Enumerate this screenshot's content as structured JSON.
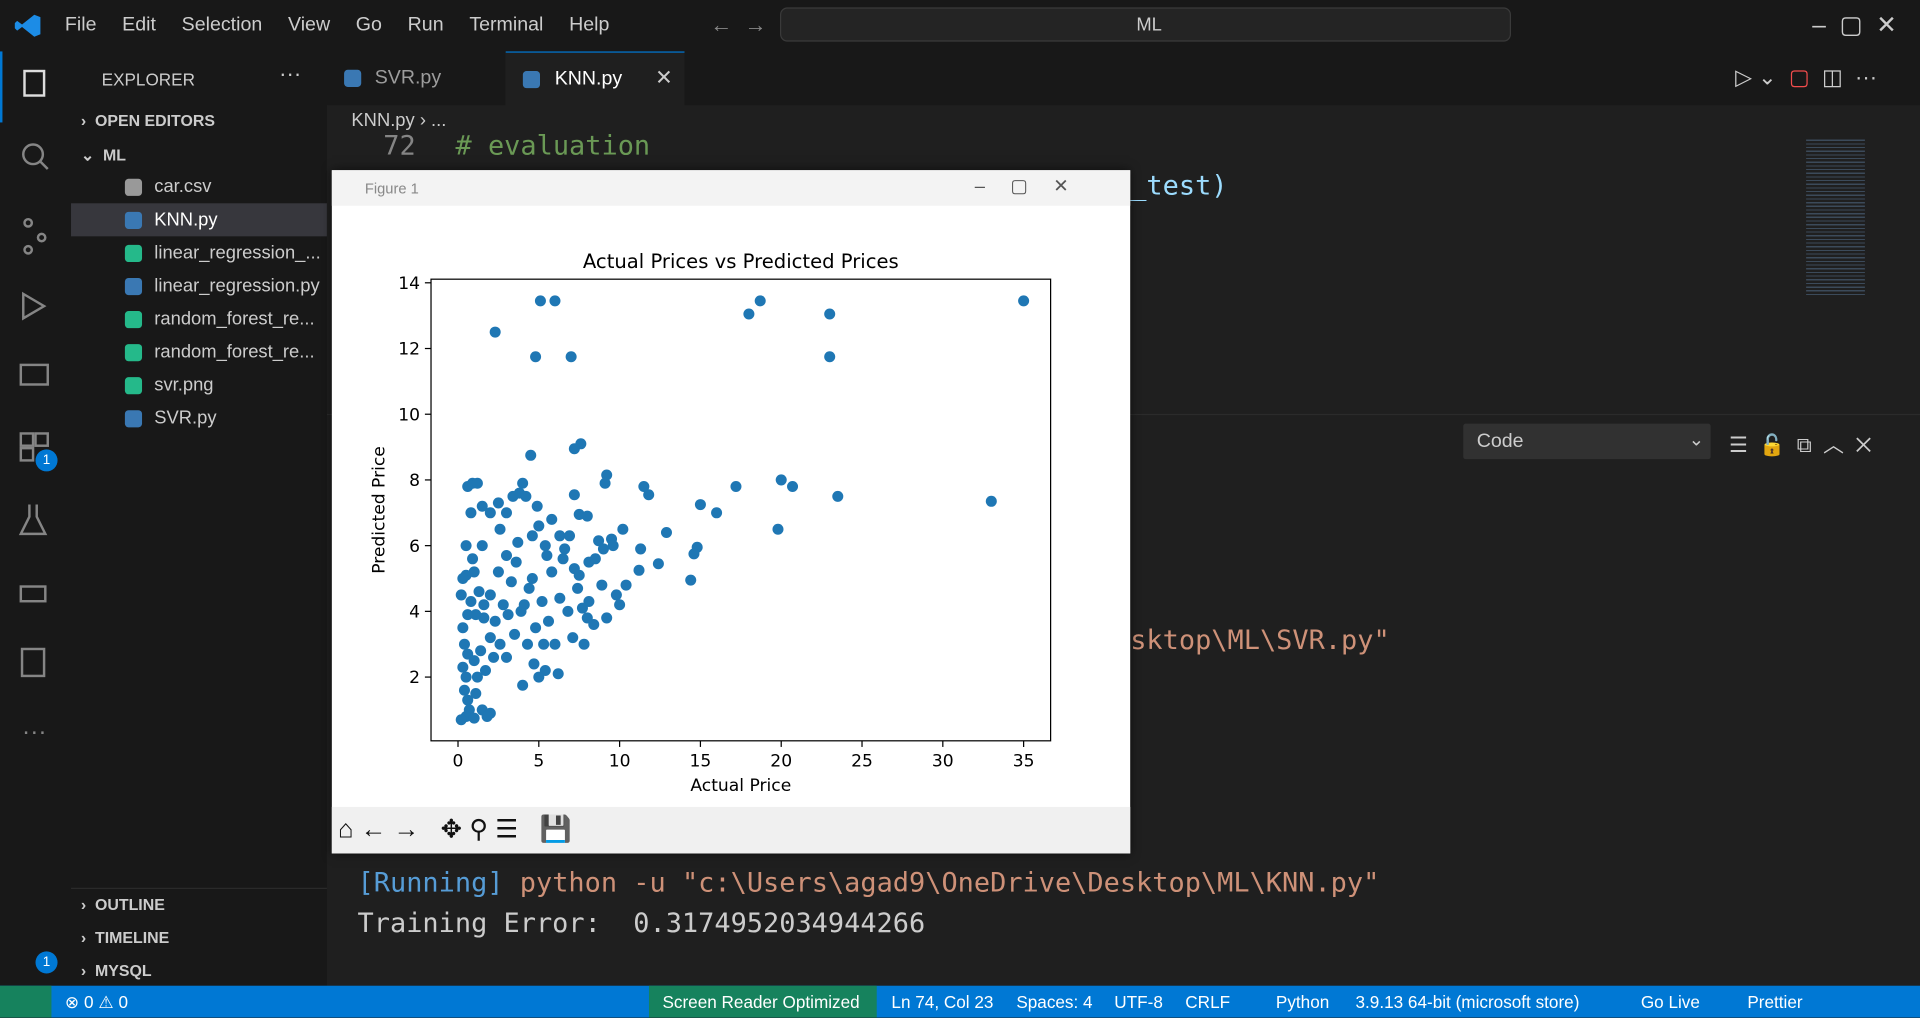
{
  "menu": [
    "File",
    "Edit",
    "Selection",
    "View",
    "Go",
    "Run",
    "Terminal",
    "Help"
  ],
  "search": "ML",
  "tabs": [
    "SVR.py",
    "KNN.py"
  ],
  "breadcrumb": [
    "KNN.py",
    "..."
  ],
  "explorer": {
    "title": "EXPLORER",
    "sections": [
      "OPEN EDITORS",
      "ML"
    ],
    "files": [
      "car.csv",
      "KNN.py",
      "linear_regression_...",
      "linear_regression.py",
      "random_forest_re...",
      "random_forest_re...",
      "svr.png",
      "SVR.py"
    ],
    "bottom": [
      "OUTLINE",
      "TIMELINE",
      "MYSQL"
    ]
  },
  "badges": [
    "1",
    "1"
  ],
  "editor": {
    "line_number": "72",
    "code": "# evaluation",
    "partial": "_test)"
  },
  "panel": {
    "dropdown": "Code",
    "svr_tail": "sktop\\ML\\SVR.py\"",
    "running": "[Running]",
    "command": "python -u \"c:\\Users\\agad9\\OneDrive\\Desktop\\ML\\KNN.py\"",
    "output": "Training Error:  0.3174952034944266"
  },
  "figure": {
    "title": "Figure 1"
  },
  "chart_data": {
    "type": "scatter",
    "title": "Actual Prices vs Predicted Prices",
    "xlabel": "Actual Price",
    "ylabel": "Predicted Price",
    "color": "#1f77b4",
    "xlim": [
      -1.67,
      36.67
    ],
    "ylim": [
      0.06,
      14.11
    ],
    "xticks": [
      0,
      5,
      10,
      15,
      20,
      25,
      30,
      35
    ],
    "yticks": [
      2,
      4,
      6,
      8,
      10,
      12,
      14
    ],
    "x": [
      5.1,
      6,
      18.7,
      35,
      18,
      23,
      2.3,
      4.8,
      7,
      23,
      33,
      23.5,
      20,
      20.7,
      19.8,
      17.2,
      16,
      15,
      14.8,
      14.6,
      14.4,
      12.9,
      12.4,
      11.5,
      11.8,
      11.3,
      11.2,
      9.2,
      9.1,
      7.6,
      7.2,
      4.5,
      7.2,
      7.5,
      8,
      10.2,
      9.5,
      8.7,
      10,
      9.8,
      9.2,
      8.9,
      8.4,
      8.1,
      8.5,
      9,
      8.1,
      7.5,
      6.6,
      6.8,
      6.3,
      6,
      6.2,
      5.4,
      5,
      4.7,
      4,
      3,
      2.6,
      2,
      1.6,
      1.3,
      1,
      0.5,
      0.3,
      0.5,
      0.8,
      0.6,
      0.9,
      1.2,
      1.5,
      2,
      2.5,
      3,
      3.4,
      3.8,
      4.2,
      4,
      4.9,
      5.8,
      5.4,
      4.6,
      3.7,
      3,
      2.5,
      2,
      1.6,
      1.1,
      0.6,
      0.3,
      0.4,
      0.6,
      0.3,
      0.5,
      0.4,
      0.6,
      0.7,
      0.5,
      0.2,
      1,
      1.5,
      2,
      1.8,
      1.1,
      1.2,
      1,
      1.4,
      2.2,
      3.5,
      4.3,
      4.8,
      5.6,
      5.2,
      4.4,
      3.3,
      2.8,
      3.9,
      4.6,
      5.8,
      6.5,
      7.2,
      6.3,
      5,
      2.6,
      1.5,
      3.6,
      4.1,
      5.3,
      7.1,
      7.7,
      7.8,
      6.9,
      5.5,
      3.1,
      2.3,
      1.7,
      0.2,
      0.8,
      0.9,
      7.4,
      8,
      9.6,
      10.4
    ],
    "values": [
      13.45,
      13.45,
      13.45,
      13.45,
      13.05,
      13.05,
      12.5,
      11.75,
      11.75,
      11.75,
      7.35,
      7.5,
      8,
      7.8,
      6.5,
      7.8,
      7,
      7.25,
      5.95,
      5.75,
      4.95,
      6.4,
      5.45,
      7.8,
      7.55,
      5.9,
      5.25,
      8.15,
      7.9,
      9.1,
      8.95,
      8.75,
      7.55,
      6.95,
      6.9,
      6.5,
      6.2,
      6.15,
      4.2,
      4.5,
      3.8,
      4.8,
      3.6,
      5.5,
      5.6,
      5.9,
      4.3,
      5.1,
      5.9,
      4,
      4.4,
      3,
      2.1,
      2.2,
      2,
      2.4,
      1.75,
      2.6,
      3,
      3.2,
      3.8,
      4.6,
      5.2,
      5.1,
      5,
      6,
      7,
      7.8,
      7.9,
      7.9,
      7.2,
      7,
      7.3,
      7,
      7.5,
      7.6,
      7.5,
      7.9,
      7.2,
      6.8,
      6,
      6.3,
      6.1,
      5.7,
      5.2,
      4.5,
      4.2,
      3.9,
      3.9,
      3.5,
      3,
      2.7,
      2.3,
      2,
      1.6,
      1.3,
      1,
      0.8,
      0.7,
      0.75,
      1,
      0.9,
      0.8,
      1.5,
      2,
      2.5,
      2.8,
      2.6,
      3.3,
      3,
      3.5,
      3.7,
      4.3,
      4.7,
      4.9,
      4.2,
      4,
      5,
      5.2,
      5.6,
      5.3,
      6.3,
      6.6,
      6.5,
      6,
      5.5,
      4.2,
      3,
      3.2,
      4.1,
      3,
      6.3,
      5.7,
      3.9,
      3.7,
      2.2,
      4.5,
      4.3,
      5.6,
      4.7,
      3.8,
      6,
      4.8
    ]
  },
  "status": [
    "Screen Reader Optimized",
    "Ln 74, Col 23",
    "Spaces: 4",
    "UTF-8",
    "CRLF",
    "Python",
    "3.9.13 64-bit (microsoft store)",
    "Go Live",
    "Prettier",
    "0",
    "0"
  ]
}
